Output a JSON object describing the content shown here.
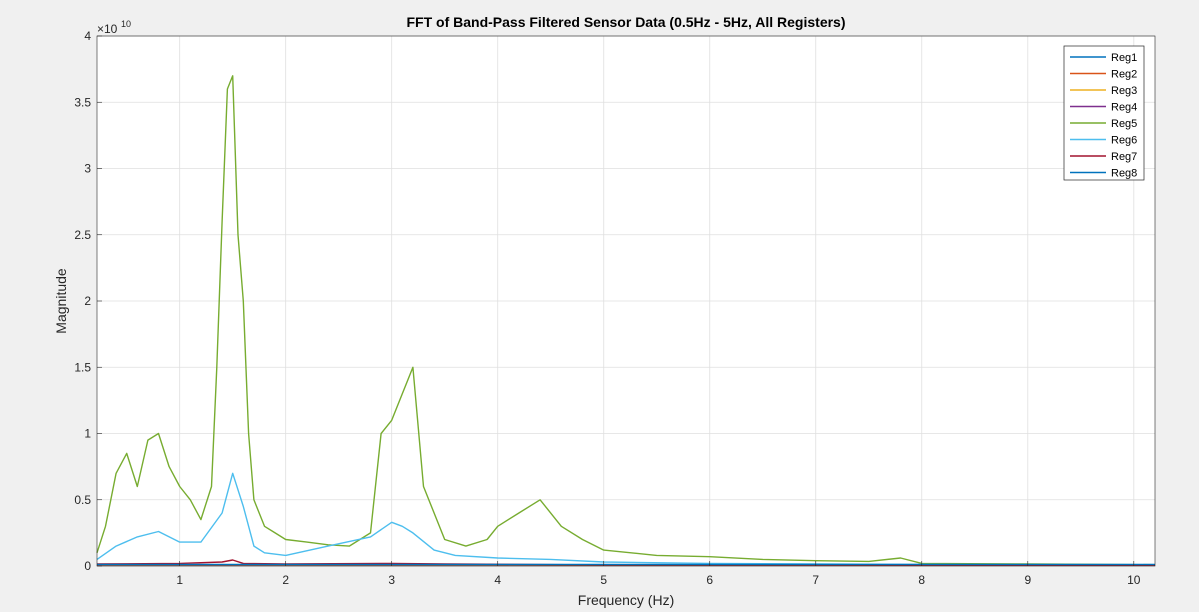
{
  "chart_data": {
    "type": "line",
    "title": "FFT of Band-Pass Filtered Sensor Data (0.5Hz - 5Hz, All Registers)",
    "xlabel": "Frequency (Hz)",
    "ylabel": "Magnitude",
    "y_exponent_label": "×10",
    "y_exponent": "10",
    "xlim": [
      0.22,
      10.2
    ],
    "ylim": [
      0,
      40000000000
    ],
    "xticks": [
      1,
      2,
      3,
      4,
      5,
      6,
      7,
      8,
      9,
      10
    ],
    "xtick_labels": [
      "1",
      "2",
      "3",
      "4",
      "5",
      "6",
      "7",
      "8",
      "9",
      "10"
    ],
    "yticks": [
      0,
      5000000000,
      10000000000,
      15000000000,
      20000000000,
      25000000000,
      30000000000,
      35000000000,
      40000000000
    ],
    "ytick_labels": [
      "0",
      "0.5",
      "1",
      "1.5",
      "2",
      "2.5",
      "3",
      "3.5",
      "4"
    ],
    "grid": true,
    "legend_position": "top-right",
    "series": [
      {
        "name": "Reg1",
        "color": "#0072BD",
        "x": [
          0.22,
          10.2
        ],
        "values": [
          50000000,
          50000000
        ]
      },
      {
        "name": "Reg2",
        "color": "#D95319",
        "x": [
          0.22,
          10.2
        ],
        "values": [
          80000000,
          80000000
        ]
      },
      {
        "name": "Reg3",
        "color": "#EDB120",
        "x": [
          0.22,
          10.2
        ],
        "values": [
          60000000,
          60000000
        ]
      },
      {
        "name": "Reg4",
        "color": "#7E2F8E",
        "x": [
          0.22,
          10.2
        ],
        "values": [
          100000000,
          100000000
        ]
      },
      {
        "name": "Reg5",
        "color": "#77AC30",
        "x": [
          0.22,
          0.3,
          0.4,
          0.5,
          0.6,
          0.7,
          0.8,
          0.9,
          1.0,
          1.1,
          1.2,
          1.3,
          1.35,
          1.4,
          1.45,
          1.5,
          1.55,
          1.6,
          1.65,
          1.7,
          1.8,
          1.9,
          2.0,
          2.2,
          2.4,
          2.6,
          2.8,
          2.9,
          3.0,
          3.1,
          3.2,
          3.3,
          3.5,
          3.7,
          3.9,
          4.0,
          4.2,
          4.4,
          4.6,
          4.8,
          5.0,
          5.5,
          6.0,
          6.5,
          7.0,
          7.5,
          7.8,
          8.0,
          9.0,
          10.2
        ],
        "values": [
          1000000000,
          3000000000,
          7000000000,
          8500000000,
          6000000000,
          9500000000,
          10000000000,
          7500000000,
          6000000000,
          5000000000,
          3500000000,
          6000000000,
          15000000000,
          26000000000,
          36000000000,
          37000000000,
          25000000000,
          20000000000,
          10000000000,
          5000000000,
          3000000000,
          2500000000,
          2000000000,
          1800000000,
          1600000000,
          1500000000,
          2500000000,
          10000000000,
          11000000000,
          13000000000,
          15000000000,
          6000000000,
          2000000000,
          1500000000,
          2000000000,
          3000000000,
          4000000000,
          5000000000,
          3000000000,
          2000000000,
          1200000000,
          800000000,
          700000000,
          500000000,
          400000000,
          350000000,
          600000000,
          200000000,
          150000000,
          100000000
        ]
      },
      {
        "name": "Reg6",
        "color": "#4DBEEE",
        "x": [
          0.22,
          0.4,
          0.6,
          0.8,
          1.0,
          1.2,
          1.4,
          1.5,
          1.6,
          1.7,
          1.8,
          2.0,
          2.4,
          2.8,
          3.0,
          3.1,
          3.2,
          3.4,
          3.6,
          4.0,
          4.5,
          5.0,
          6.0,
          7.0,
          8.0,
          9.0,
          10.2
        ],
        "values": [
          500000000,
          1500000000,
          2200000000,
          2600000000,
          1800000000,
          1800000000,
          4000000000,
          7000000000,
          4500000000,
          1500000000,
          1000000000,
          800000000,
          1500000000,
          2200000000,
          3300000000,
          3000000000,
          2500000000,
          1200000000,
          800000000,
          600000000,
          500000000,
          300000000,
          200000000,
          150000000,
          120000000,
          100000000,
          100000000
        ]
      },
      {
        "name": "Reg7",
        "color": "#A2142F",
        "x": [
          0.22,
          1.0,
          1.4,
          1.5,
          1.6,
          2.0,
          3.0,
          3.5,
          5.0,
          10.2
        ],
        "values": [
          150000000,
          200000000,
          300000000,
          450000000,
          200000000,
          150000000,
          200000000,
          150000000,
          80000000,
          60000000
        ]
      },
      {
        "name": "Reg8",
        "color": "#0072BD",
        "x": [
          0.22,
          10.2
        ],
        "values": [
          120000000,
          120000000
        ]
      }
    ]
  }
}
